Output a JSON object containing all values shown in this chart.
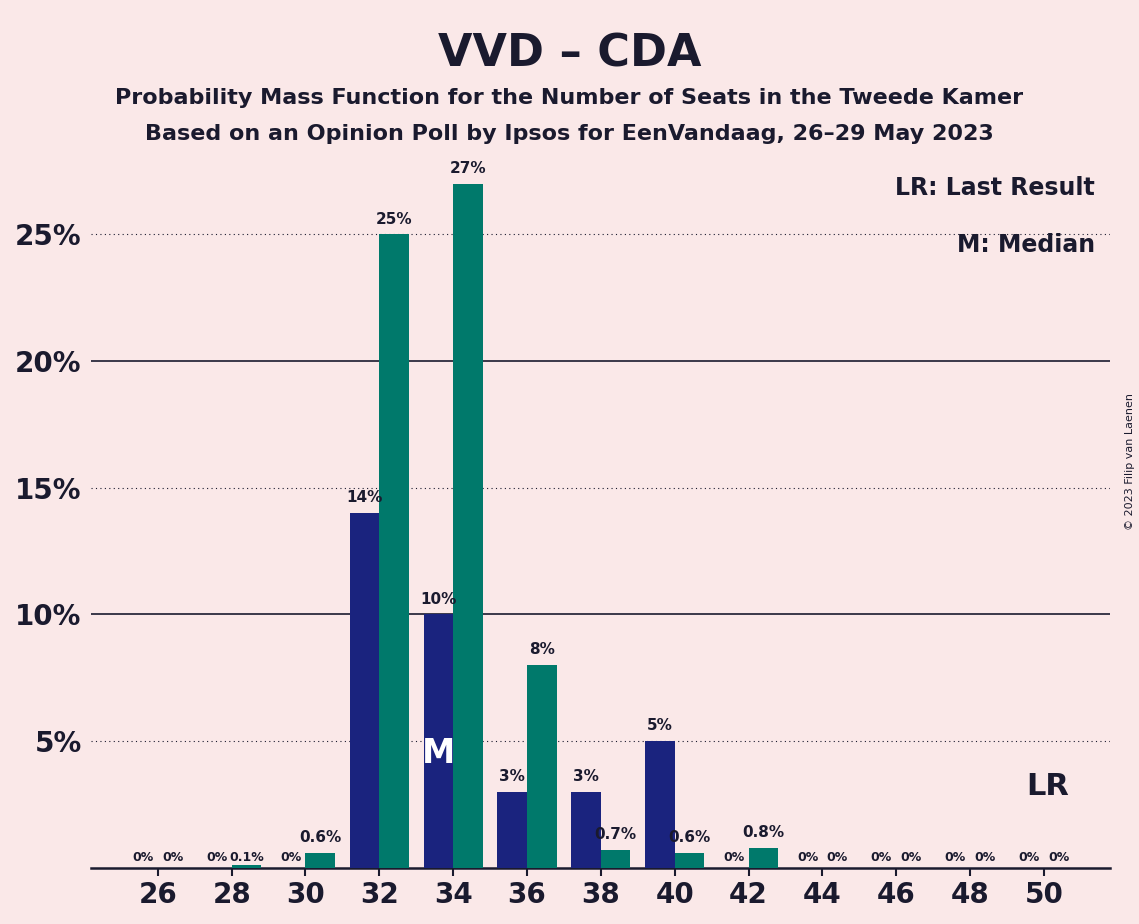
{
  "title": "VVD – CDA",
  "subtitle1": "Probability Mass Function for the Number of Seats in the Tweede Kamer",
  "subtitle2": "Based on an Opinion Poll by Ipsos for EenVandaag, 26–29 May 2023",
  "copyright": "© 2023 Filip van Laenen",
  "legend_lr": "LR: Last Result",
  "legend_m": "M: Median",
  "lr_label": "LR",
  "median_label": "M",
  "background_color": "#FAE8E8",
  "navy_color": "#1a237e",
  "teal_color": "#00796b",
  "seats": [
    26,
    28,
    30,
    32,
    34,
    36,
    38,
    40,
    42,
    44,
    46,
    48,
    50
  ],
  "vvd_values": [
    0.0,
    0.0,
    0.0,
    14.0,
    10.0,
    3.0,
    3.0,
    5.0,
    0.0,
    0.0,
    0.0,
    0.0,
    0.0
  ],
  "cda_values": [
    0.0,
    0.1,
    0.6,
    25.0,
    27.0,
    8.0,
    0.7,
    0.6,
    0.8,
    0.0,
    0.0,
    0.0,
    0.0
  ],
  "vvd_labels": [
    "0%",
    "0%",
    "0%",
    "14%",
    "10%",
    "3%",
    "3%",
    "5%",
    "0%",
    "0%",
    "0%",
    "0%",
    "0%"
  ],
  "cda_labels": [
    "0%",
    "0.1%",
    "0.6%",
    "25%",
    "27%",
    "8%",
    "0.7%",
    "0.6%",
    "0.8%",
    "0%",
    "0%",
    "0%",
    "0%"
  ],
  "ylim": [
    0,
    28
  ],
  "ytick_positions": [
    5,
    10,
    15,
    20,
    25
  ],
  "ytick_labels_map": {
    "5": "5%",
    "10": "10%",
    "15": "15%",
    "20": "20%",
    "25": "25%"
  },
  "solid_yticks": [
    10,
    20
  ],
  "dotted_yticks": [
    5,
    15,
    25
  ],
  "median_seat": 34,
  "lr_seat": 40,
  "bar_width": 0.8,
  "title_fontsize": 32,
  "subtitle_fontsize": 16,
  "tick_fontsize": 20
}
